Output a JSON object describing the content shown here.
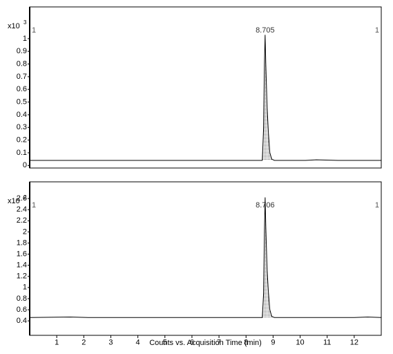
{
  "chart_data": [
    {
      "type": "line",
      "y_scale_label": "x10",
      "y_scale_exponent": "3",
      "peak_label": 8.705,
      "segment_labels": [
        "1",
        "1"
      ],
      "xlim": [
        0,
        13
      ],
      "ylim": [
        -0.02,
        1.25
      ],
      "yticks": [
        0,
        0.1,
        0.2,
        0.3,
        0.4,
        0.5,
        0.6,
        0.7,
        0.8,
        0.9,
        1
      ],
      "series": [
        {
          "color": "#000000",
          "x": [
            0,
            8.6,
            8.65,
            8.68,
            8.705,
            8.73,
            8.78,
            8.83,
            8.88,
            8.95,
            9.05,
            10.2,
            10.6,
            11.4,
            13
          ],
          "values": [
            0.04,
            0.04,
            0.3,
            0.8,
            1.03,
            0.8,
            0.45,
            0.25,
            0.1,
            0.05,
            0.04,
            0.04,
            0.045,
            0.04,
            0.04
          ]
        }
      ]
    },
    {
      "type": "line",
      "y_scale_label": "x10",
      "y_scale_exponent": "2",
      "peak_label": 8.706,
      "segment_labels": [
        "1",
        "1"
      ],
      "xlim": [
        0,
        13
      ],
      "ylim": [
        0.14,
        2.9
      ],
      "xticks": [
        1,
        2,
        3,
        4,
        5,
        6,
        7,
        8,
        9,
        10,
        11,
        12
      ],
      "yticks": [
        0.4,
        0.6,
        0.8,
        1,
        1.2,
        1.4,
        1.6,
        1.8,
        2,
        2.2,
        2.4,
        2.6
      ],
      "x_label": "Counts vs. Acquisition Time (min)",
      "series": [
        {
          "color": "#000000",
          "x": [
            0,
            1.5,
            2.2,
            8.6,
            8.65,
            8.68,
            8.706,
            8.73,
            8.78,
            8.83,
            8.88,
            8.95,
            9.05,
            12,
            12.5,
            13
          ],
          "values": [
            0.46,
            0.47,
            0.46,
            0.46,
            0.9,
            2.0,
            2.62,
            2.1,
            1.3,
            0.9,
            0.6,
            0.48,
            0.46,
            0.46,
            0.47,
            0.46
          ]
        }
      ]
    }
  ]
}
